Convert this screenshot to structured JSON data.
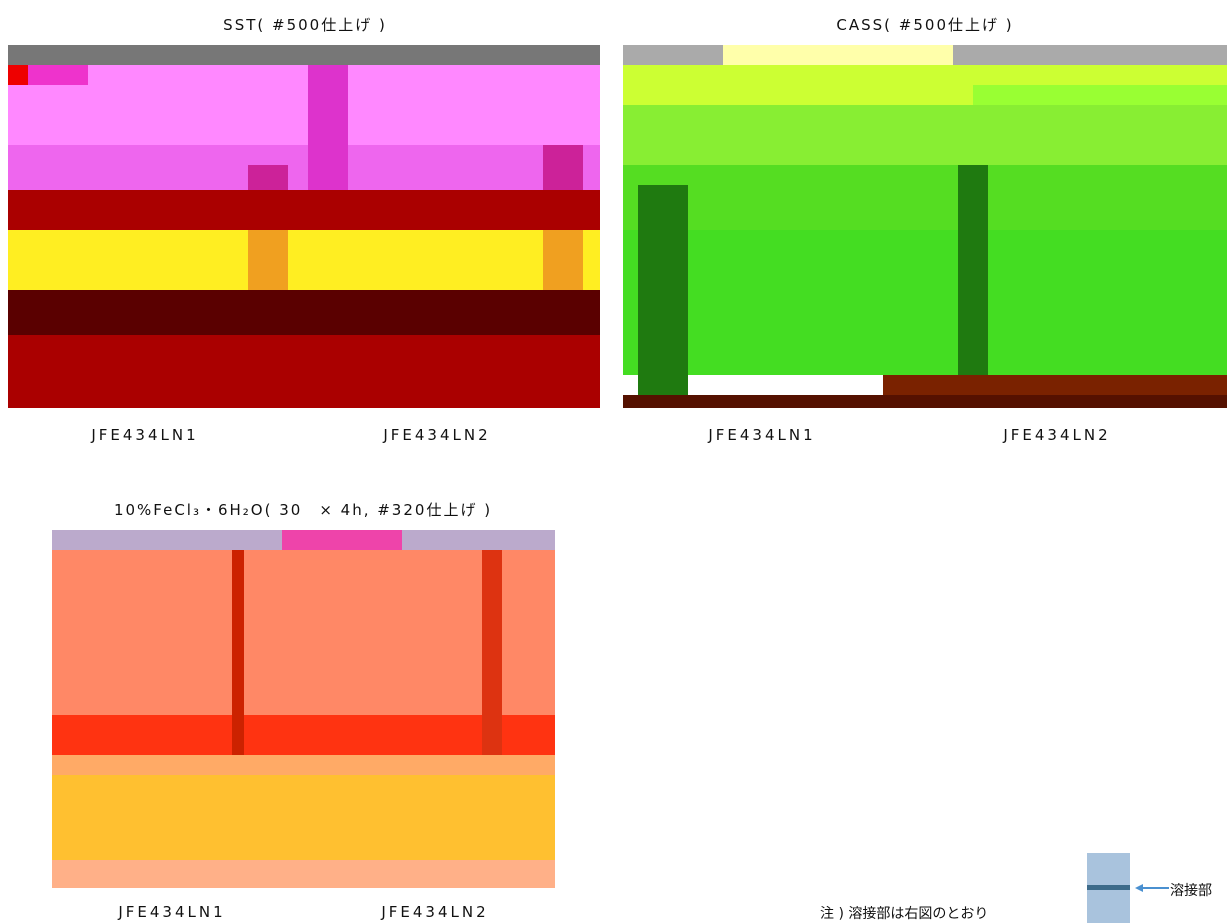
{
  "panels": [
    {
      "title": "SST( #500仕上げ )",
      "labels": [
        "JFE434LN1",
        "JFE434LN2"
      ]
    },
    {
      "title": "CASS( #500仕上げ )",
      "labels": [
        "JFE434LN1",
        "JFE434LN2"
      ]
    },
    {
      "title": "10%FeCl₃・6H₂O( 30　× 4h, #320仕上げ )",
      "labels": [
        "JFE434LN1",
        "JFE434LN2"
      ]
    }
  ],
  "note": {
    "text": "注 ) 溶接部は右図のとおり",
    "callout": "溶接部"
  }
}
